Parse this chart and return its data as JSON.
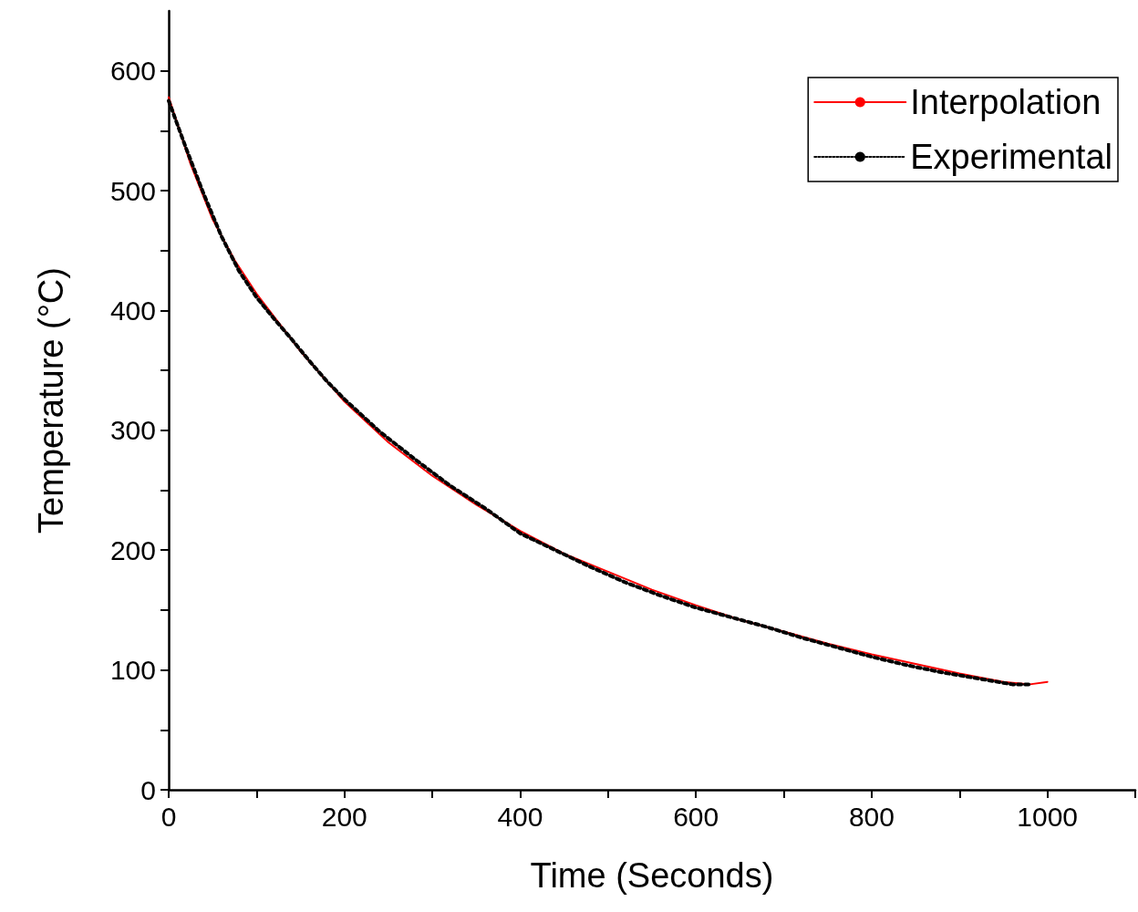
{
  "chart_data": {
    "type": "line",
    "xlabel": "Time (Seconds)",
    "ylabel": "Temperature (°C)",
    "xlim": [
      0,
      1100
    ],
    "ylim": [
      0,
      650
    ],
    "xticks": [
      0,
      {
        "value": 100,
        "label": null
      },
      200,
      {
        "value": 300,
        "label": null
      },
      400,
      {
        "value": 500,
        "label": null
      },
      600,
      {
        "value": 700,
        "label": null
      },
      800,
      {
        "value": 900,
        "label": null
      },
      1000,
      {
        "value": 1100,
        "label": null
      }
    ],
    "yticks": [
      0,
      {
        "value": 50,
        "label": null
      },
      100,
      {
        "value": 150,
        "label": null
      },
      200,
      {
        "value": 250,
        "label": null
      },
      300,
      {
        "value": 350,
        "label": null
      },
      400,
      {
        "value": 450,
        "label": null
      },
      500,
      {
        "value": 550,
        "label": null
      },
      600
    ],
    "grid": false,
    "legend": "top right",
    "marker": "none",
    "series": [
      {
        "name": "Interpolation",
        "color": "#ff0000",
        "line_style": "solid",
        "x": [
          0,
          25,
          50,
          75,
          100,
          150,
          200,
          250,
          300,
          350,
          400,
          450,
          500,
          550,
          600,
          650,
          700,
          750,
          800,
          850,
          900,
          950,
          980,
          1000
        ],
        "values": [
          578,
          522,
          476,
          442,
          414,
          366,
          324,
          290,
          262,
          238,
          216,
          197,
          182,
          167,
          154,
          142,
          132,
          122,
          113,
          105,
          97,
          90,
          88,
          90
        ]
      },
      {
        "name": "Experimental",
        "color": "#000000",
        "line_style": "dotted",
        "x": [
          0,
          20,
          40,
          60,
          80,
          100,
          120,
          140,
          160,
          180,
          200,
          240,
          280,
          320,
          360,
          400,
          440,
          480,
          520,
          560,
          600,
          640,
          680,
          720,
          760,
          800,
          840,
          880,
          920,
          960,
          980
        ],
        "values": [
          575,
          535,
          497,
          462,
          433,
          411,
          393,
          376,
          358,
          341,
          326,
          299,
          276,
          254,
          235,
          214,
          200,
          186,
          173,
          162,
          152,
          144,
          136,
          127,
          119,
          111,
          104,
          98,
          93,
          88,
          88
        ]
      }
    ]
  }
}
